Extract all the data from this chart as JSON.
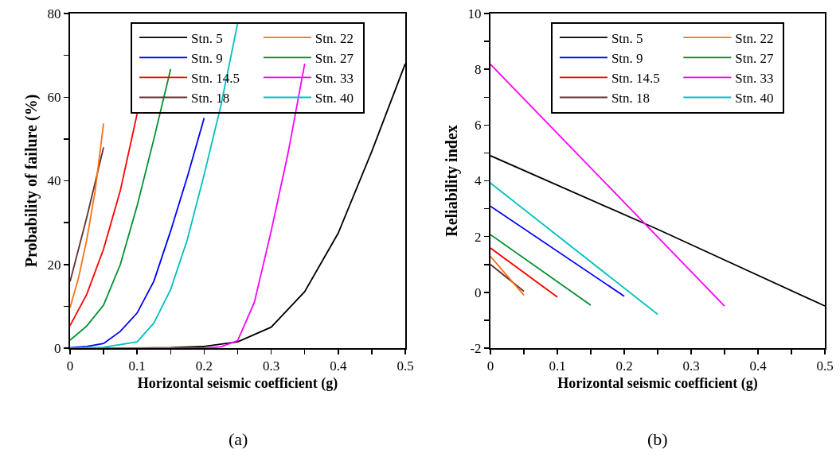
{
  "chart_data": [
    {
      "type": "line",
      "xlabel": "Horizontal seismic coefficient (g)",
      "ylabel": "Probability of failure (%)",
      "xlim": [
        0,
        0.5
      ],
      "ylim": [
        0,
        80
      ],
      "xticks": [
        0,
        {
          "value": 0.05,
          "label": null
        },
        0.1,
        {
          "value": 0.15,
          "label": null
        },
        0.2,
        {
          "value": 0.25,
          "label": null
        },
        0.3,
        {
          "value": 0.35,
          "label": null
        },
        0.4,
        {
          "value": 0.45,
          "label": null
        },
        0.5
      ],
      "yticks": [
        0,
        {
          "value": 10,
          "label": null
        },
        20,
        {
          "value": 30,
          "label": null
        },
        40,
        {
          "value": 50,
          "label": null
        },
        60,
        {
          "value": 70,
          "label": null
        },
        80
      ],
      "grid": false,
      "legend": "top right",
      "marker": "none",
      "line_style": "solid",
      "annotations": [
        "(a)"
      ],
      "series": [
        {
          "name": "Stn. 5",
          "color": "#000000",
          "x": [
            0,
            0.1,
            0.15,
            0.2,
            0.25,
            0.3,
            0.35,
            0.4,
            0.45,
            0.5
          ],
          "values": [
            0,
            0,
            0.1,
            0.4,
            1.5,
            5,
            13.5,
            27.5,
            47,
            68
          ]
        },
        {
          "name": "Stn. 9",
          "color": "#0000ff",
          "x": [
            0,
            0.025,
            0.05,
            0.075,
            0.1,
            0.125,
            0.15,
            0.175,
            0.2
          ],
          "values": [
            0.1,
            0.4,
            1.1,
            4,
            8.4,
            16,
            28,
            41,
            55
          ]
        },
        {
          "name": "Stn. 14.5",
          "color": "#ff0000",
          "x": [
            0,
            0.025,
            0.05,
            0.075,
            0.1
          ],
          "values": [
            5.4,
            12.9,
            23.7,
            37.7,
            56
          ]
        },
        {
          "name": "Stn. 18",
          "color": "#5c3030",
          "x": [
            0,
            0.025,
            0.05
          ],
          "values": [
            15.9,
            31.3,
            48
          ]
        },
        {
          "name": "Stn. 22",
          "color": "#ff7010",
          "x": [
            0,
            0.0125,
            0.025,
            0.0375,
            0.05
          ],
          "values": [
            9.7,
            16.7,
            26,
            37.7,
            53.7
          ]
        },
        {
          "name": "Stn. 27",
          "color": "#009030",
          "x": [
            0,
            0.025,
            0.05,
            0.075,
            0.1,
            0.125,
            0.15
          ],
          "values": [
            1.9,
            5.3,
            10.3,
            20,
            34,
            50,
            66.7
          ]
        },
        {
          "name": "Stn. 33",
          "color": "#ff00ff",
          "x": [
            0,
            0.2,
            0.225,
            0.25,
            0.275,
            0.3,
            0.325,
            0.35
          ],
          "values": [
            0,
            0,
            0.3,
            1.8,
            11,
            28,
            46.5,
            68
          ]
        },
        {
          "name": "Stn. 40",
          "color": "#00c0c0",
          "x": [
            0,
            0.05,
            0.1,
            0.125,
            0.15,
            0.175,
            0.2,
            0.225,
            0.25
          ],
          "values": [
            0,
            0.2,
            1.5,
            6,
            14,
            26,
            41.5,
            58,
            77.7
          ]
        }
      ]
    },
    {
      "type": "line",
      "xlabel": "Horizontal seismic coefficient (g)",
      "ylabel": "Reliability index",
      "xlim": [
        0,
        0.5
      ],
      "ylim": [
        -2,
        10
      ],
      "xticks": [
        0,
        {
          "value": 0.05,
          "label": null
        },
        0.1,
        {
          "value": 0.15,
          "label": null
        },
        0.2,
        {
          "value": 0.25,
          "label": null
        },
        0.3,
        {
          "value": 0.35,
          "label": null
        },
        0.4,
        {
          "value": 0.45,
          "label": null
        },
        0.5
      ],
      "yticks": [
        -2,
        {
          "value": -1,
          "label": null
        },
        0,
        {
          "value": 1,
          "label": null
        },
        2,
        {
          "value": 3,
          "label": null
        },
        4,
        {
          "value": 5,
          "label": null
        },
        6,
        {
          "value": 7,
          "label": null
        },
        8,
        {
          "value": 9,
          "label": null
        },
        10
      ],
      "grid": false,
      "legend": "top right",
      "marker": "none",
      "line_style": "solid",
      "annotations": [
        "(b)"
      ],
      "series": [
        {
          "name": "Stn. 5",
          "color": "#000000",
          "x": [
            0,
            0.25,
            0.5
          ],
          "values": [
            4.9,
            2.26,
            -0.49
          ]
        },
        {
          "name": "Stn. 9",
          "color": "#0000ff",
          "x": [
            0,
            0.2
          ],
          "values": [
            3.09,
            -0.14
          ]
        },
        {
          "name": "Stn. 14.5",
          "color": "#ff0000",
          "x": [
            0,
            0.1
          ],
          "values": [
            1.59,
            -0.17
          ]
        },
        {
          "name": "Stn. 18",
          "color": "#5c3030",
          "x": [
            0,
            0.05
          ],
          "values": [
            1.0,
            0.04
          ]
        },
        {
          "name": "Stn. 22",
          "color": "#ff7010",
          "x": [
            0,
            0.05
          ],
          "values": [
            1.29,
            -0.1
          ]
        },
        {
          "name": "Stn. 27",
          "color": "#009030",
          "x": [
            0,
            0.15
          ],
          "values": [
            2.07,
            -0.46
          ]
        },
        {
          "name": "Stn. 33",
          "color": "#ff00ff",
          "x": [
            0,
            0.35
          ],
          "values": [
            8.18,
            -0.49
          ]
        },
        {
          "name": "Stn. 40",
          "color": "#00c0c0",
          "x": [
            0,
            0.25
          ],
          "values": [
            3.92,
            -0.79
          ]
        }
      ]
    }
  ]
}
